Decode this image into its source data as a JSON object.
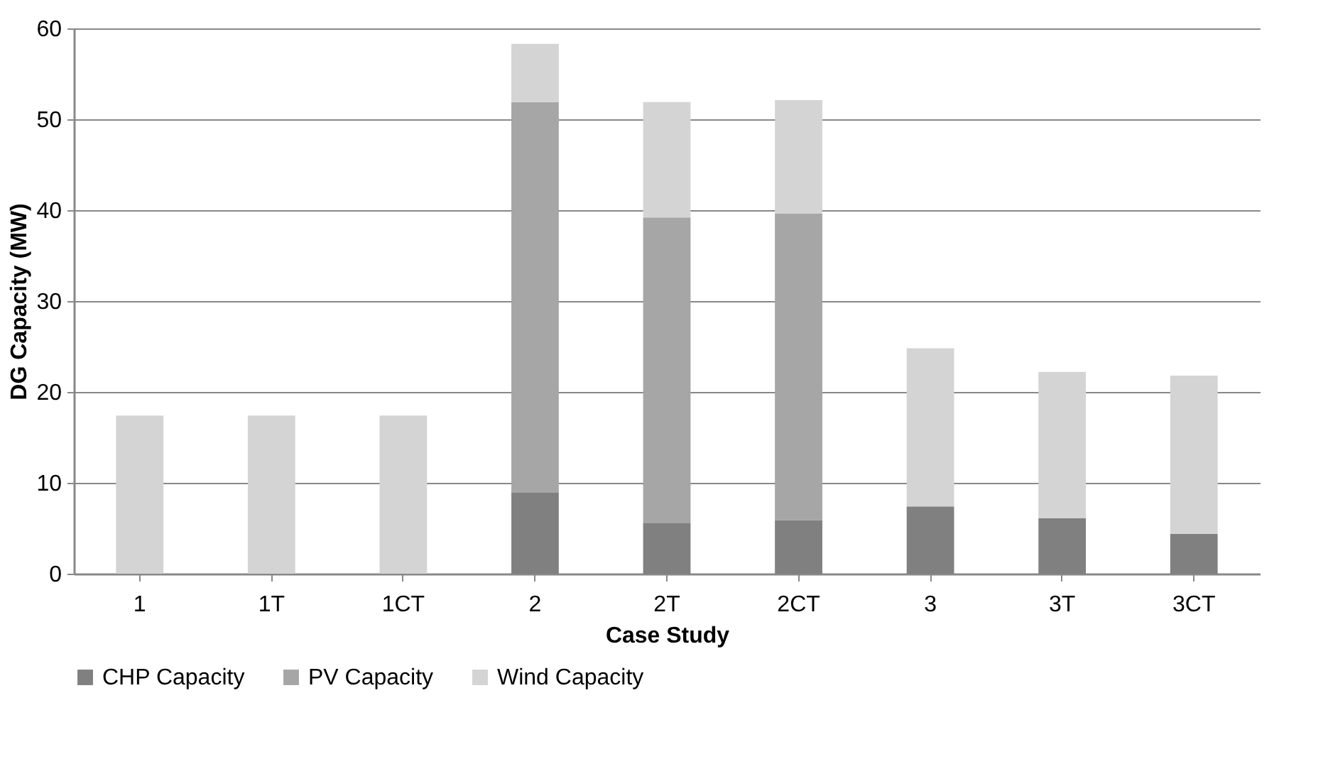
{
  "chart_data": {
    "type": "bar",
    "stacked": true,
    "xlabel": "Case Study",
    "ylabel": "DG Capacity (MW)",
    "categories": [
      "1",
      "1T",
      "1CT",
      "2",
      "2T",
      "2CT",
      "3",
      "3T",
      "3CT"
    ],
    "series": [
      {
        "name": "CHP Capacity",
        "color": "#808080",
        "values": [
          0,
          0,
          0,
          8.9,
          5.6,
          5.9,
          7.4,
          6.1,
          4.4
        ]
      },
      {
        "name": "PV Capacity",
        "color": "#a6a6a6",
        "values": [
          0,
          0,
          0,
          43.0,
          33.6,
          33.7,
          0,
          0,
          0
        ]
      },
      {
        "name": "Wind Capacity",
        "color": "#d4d4d4",
        "values": [
          17.4,
          17.4,
          17.4,
          6.4,
          12.7,
          12.5,
          17.4,
          16.1,
          17.4
        ]
      }
    ],
    "ylim": [
      0,
      60
    ],
    "yticks": [
      0,
      10,
      20,
      30,
      40,
      50,
      60
    ],
    "grid": "y",
    "legend": "bottom"
  }
}
